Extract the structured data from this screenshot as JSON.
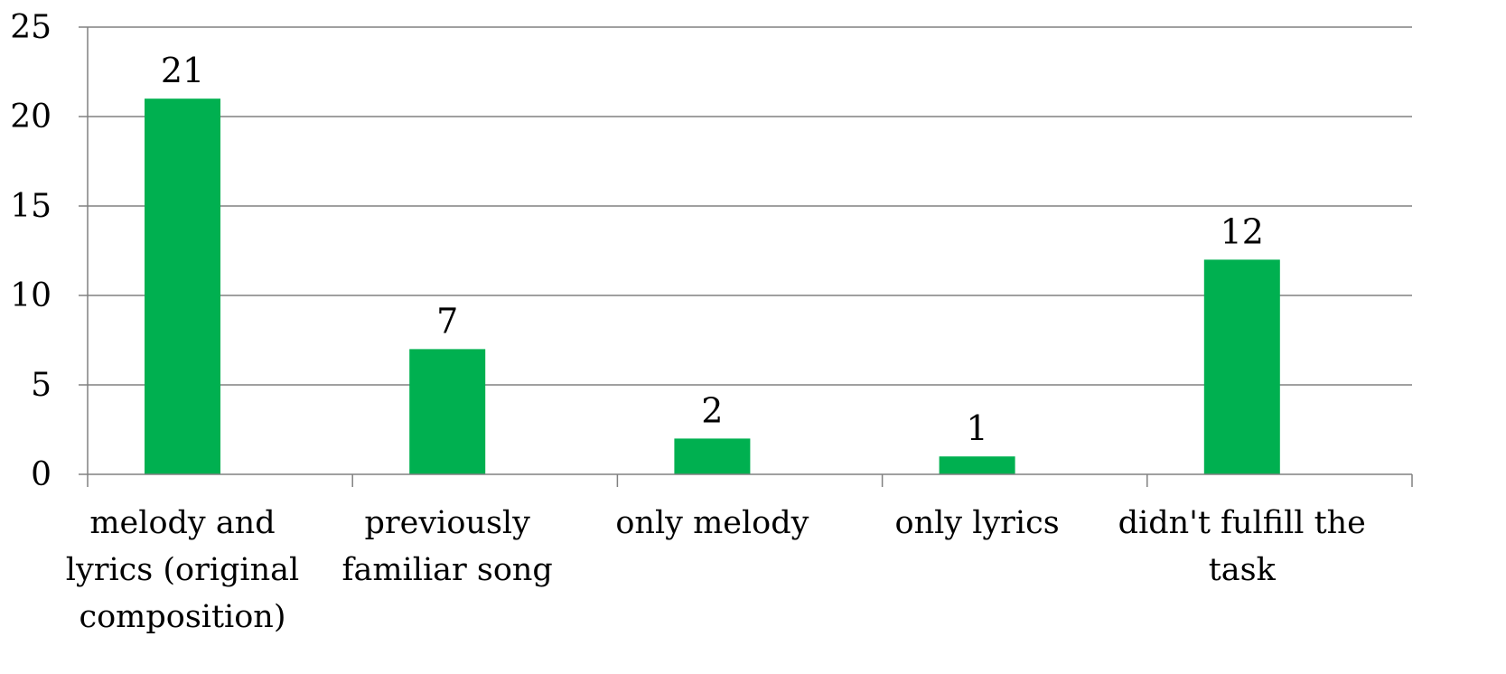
{
  "chart_data": {
    "type": "bar",
    "categories": [
      [
        "melody and",
        "lyrics (original",
        "composition)"
      ],
      [
        "previously",
        "familiar song"
      ],
      [
        "only melody"
      ],
      [
        "only lyrics"
      ],
      [
        "didn't fulfill the",
        "task"
      ]
    ],
    "values": [
      21,
      7,
      2,
      1,
      12
    ],
    "data_labels": [
      "21",
      "7",
      "2",
      "1",
      "12"
    ],
    "ylim": [
      0,
      25
    ],
    "yticks": [
      "0",
      "5",
      "10",
      "15",
      "20",
      "25"
    ],
    "ytick_values": [
      0,
      5,
      10,
      15,
      20,
      25
    ],
    "title": "",
    "xlabel": "",
    "ylabel": "",
    "grid": true,
    "legend": "none",
    "bar_color": "#00b050",
    "grid_color": "#808080",
    "axis_color": "#808080"
  }
}
